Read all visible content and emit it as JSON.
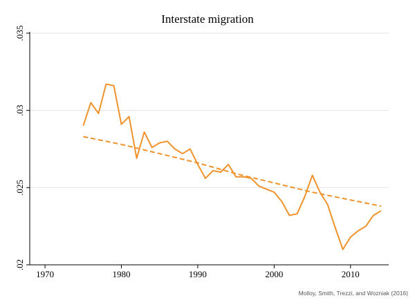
{
  "chart_data": {
    "type": "line",
    "title": "Interstate migration",
    "source": "Molloy, Smith, Trezzi, and Wozniak (2016)",
    "xlabel": "",
    "ylabel": "",
    "xlim": [
      1968,
      2015
    ],
    "ylim": [
      0.02,
      0.035
    ],
    "xticks": [
      1970,
      1980,
      1990,
      2000,
      2010
    ],
    "xtick_labels": [
      "1970",
      "1980",
      "1990",
      "2000",
      "2010"
    ],
    "yticks": [
      0.02,
      0.025,
      0.03,
      0.035
    ],
    "ytick_labels": [
      ".02",
      ".025",
      ".03",
      ".035"
    ],
    "grid": "horizontal",
    "line_color": "#f0922b",
    "series": [
      {
        "style": "solid",
        "x": [
          1975,
          1976,
          1977,
          1978,
          1979,
          1980,
          1981,
          1982,
          1983,
          1984,
          1985,
          1986,
          1987,
          1988,
          1989,
          1990,
          1991,
          1992,
          1993,
          1994,
          1995,
          1996,
          1997,
          1998,
          1999,
          2000,
          2001,
          2002,
          2003,
          2004,
          2005,
          2006,
          2007,
          2008,
          2009,
          2010,
          2011,
          2012,
          2013,
          2014
        ],
        "values": [
          0.029,
          0.0305,
          0.0298,
          0.0317,
          0.0316,
          0.0291,
          0.0296,
          0.0269,
          0.0286,
          0.0276,
          0.0279,
          0.028,
          0.0275,
          0.0272,
          0.0275,
          0.0265,
          0.0256,
          0.0261,
          0.026,
          0.0265,
          0.0257,
          0.0257,
          0.0256,
          0.0251,
          0.0249,
          0.0247,
          0.0241,
          0.0232,
          0.0233,
          0.0244,
          0.0258,
          0.0247,
          0.0239,
          0.0224,
          0.021,
          0.0218,
          0.0222,
          0.0225,
          0.0232,
          0.0235
        ]
      },
      {
        "style": "dashed",
        "x": [
          1975,
          1980,
          1985,
          1990,
          1995,
          2000,
          2005,
          2010,
          2014
        ],
        "values": [
          0.0283,
          0.0278,
          0.0272,
          0.0266,
          0.0259,
          0.0253,
          0.0247,
          0.0242,
          0.0238
        ]
      }
    ]
  }
}
